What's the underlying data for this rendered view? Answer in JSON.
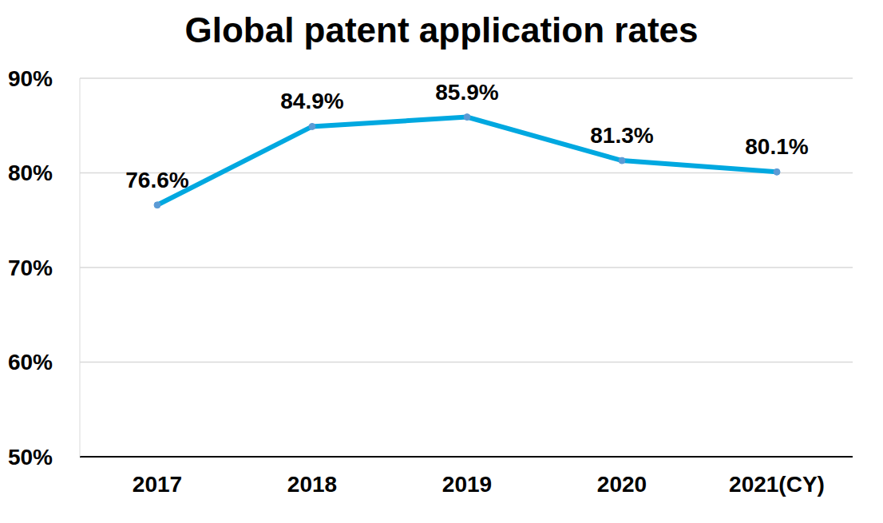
{
  "chart_data": {
    "type": "line",
    "title": "Global patent application rates",
    "categories": [
      "2017",
      "2018",
      "2019",
      "2020",
      "2021(CY)"
    ],
    "values": [
      76.6,
      84.9,
      85.9,
      81.3,
      80.1
    ],
    "value_labels": [
      "76.6%",
      "84.9%",
      "85.9%",
      "81.3%",
      "80.1%"
    ],
    "color": "#00a8e0",
    "marker": "circle",
    "ylim": [
      50,
      90
    ],
    "yticks": [
      {
        "value": 50,
        "label": "50%"
      },
      {
        "value": 60,
        "label": "60%"
      },
      {
        "value": 70,
        "label": "70%"
      },
      {
        "value": 80,
        "label": "80%"
      },
      {
        "value": 90,
        "label": "90%"
      }
    ],
    "grid": true,
    "data_labels": true
  }
}
